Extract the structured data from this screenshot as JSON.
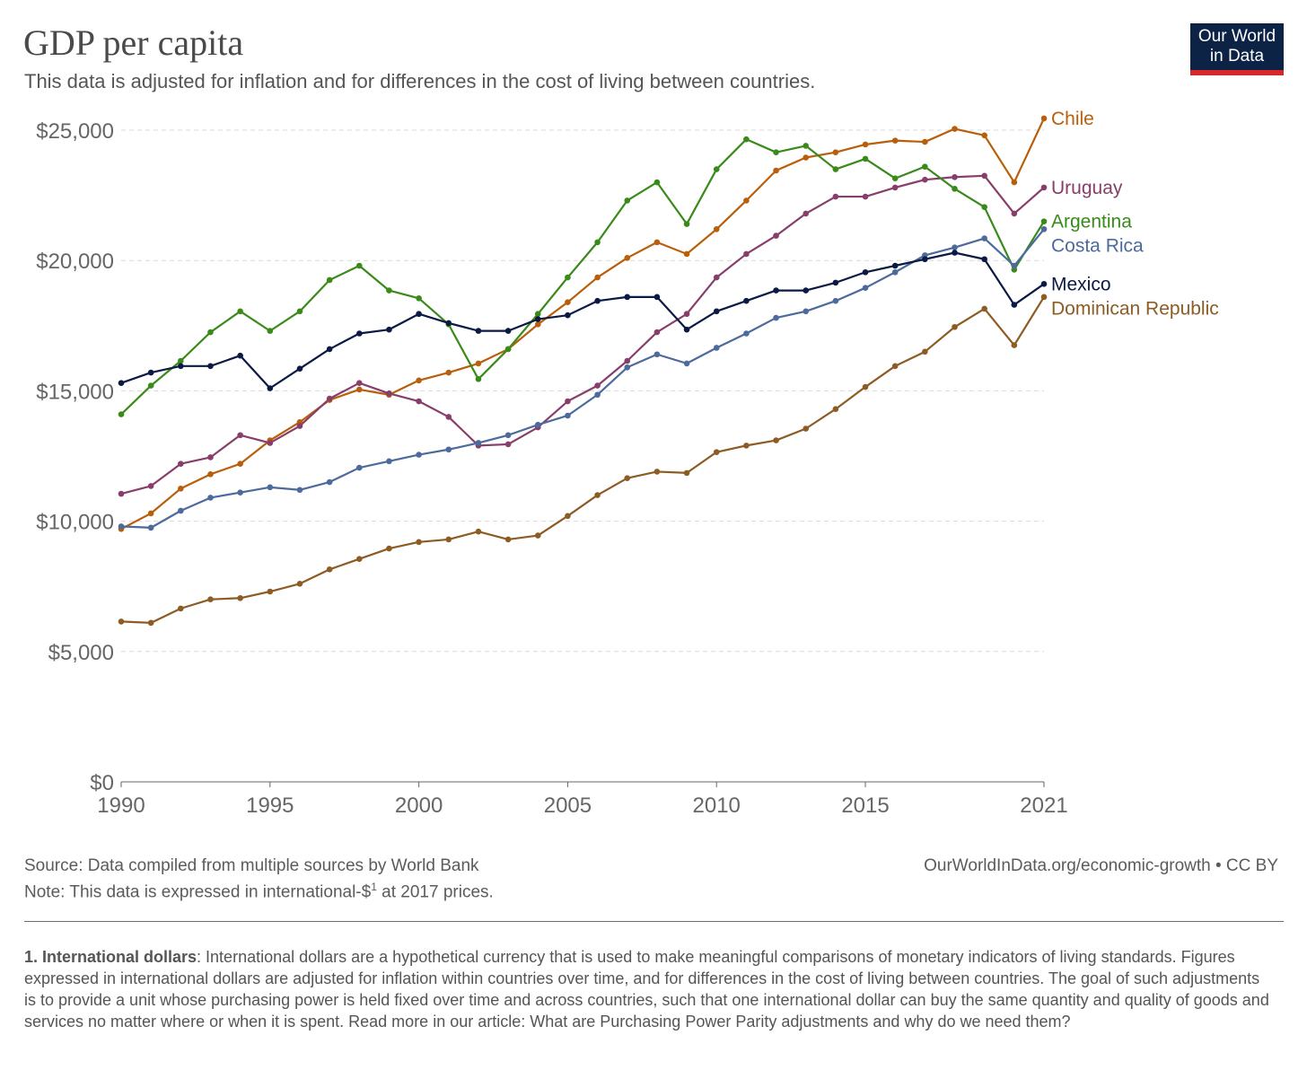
{
  "header": {
    "title": "GDP per capita",
    "subtitle": "This data is adjusted for inflation and for differences in the cost of living between countries.",
    "logo_line1": "Our World",
    "logo_line2": "in Data"
  },
  "footer": {
    "source": "Source: Data compiled from multiple sources by World Bank",
    "note_prefix": "Note: This data is expressed in international-$",
    "note_sup": "1",
    "note_suffix": " at 2017 prices.",
    "url": "OurWorldInData.org/economic-growth • CC BY",
    "footnote_bold": "1. International dollars",
    "footnote_text": ": International dollars are a hypothetical currency that is used to make meaningful comparisons of monetary indicators of living standards. Figures expressed in international dollars are adjusted for inflation within countries over time, and for differences in the cost of living between countries. The goal of such adjustments is to provide a unit whose purchasing power is held fixed over time and across countries, such that one international dollar can buy the same quantity and quality of goods and services no matter where or when it is spent. Read more in our article: What are Purchasing Power Parity adjustments and why do we need them?"
  },
  "chart_data": {
    "type": "line",
    "title": "GDP per capita",
    "xlabel": "",
    "ylabel": "",
    "xlim": [
      1990,
      2021
    ],
    "ylim": [
      0,
      25000
    ],
    "x_ticks": [
      "1990",
      "1995",
      "2000",
      "2005",
      "2010",
      "2015",
      "2021"
    ],
    "y_ticks": [
      "$0",
      "$5,000",
      "$10,000",
      "$15,000",
      "$20,000",
      "$25,000"
    ],
    "grid": true,
    "x": [
      1990,
      1991,
      1992,
      1993,
      1994,
      1995,
      1996,
      1997,
      1998,
      1999,
      2000,
      2001,
      2002,
      2003,
      2004,
      2005,
      2006,
      2007,
      2008,
      2009,
      2010,
      2011,
      2012,
      2013,
      2014,
      2015,
      2016,
      2017,
      2018,
      2019,
      2020,
      2021
    ],
    "series": [
      {
        "name": "Chile",
        "color": "#b95e0b",
        "values": [
          9700,
          10300,
          11250,
          11800,
          12200,
          13100,
          13800,
          14650,
          15050,
          14850,
          15400,
          15700,
          16050,
          16600,
          17550,
          18400,
          19350,
          20100,
          20700,
          20250,
          21200,
          22300,
          23450,
          23950,
          24150,
          24450,
          24600,
          24550,
          25050,
          24800,
          23000,
          25450
        ]
      },
      {
        "name": "Uruguay",
        "color": "#883e6a",
        "values": [
          11050,
          11350,
          12200,
          12450,
          13300,
          13000,
          13650,
          14700,
          15300,
          14900,
          14600,
          14000,
          12900,
          12950,
          13600,
          14600,
          15200,
          16150,
          17250,
          17950,
          19350,
          20250,
          20950,
          21800,
          22450,
          22450,
          22800,
          23100,
          23200,
          23250,
          21800,
          22800
        ]
      },
      {
        "name": "Argentina",
        "color": "#3a8a1a",
        "values": [
          14100,
          15200,
          16150,
          17250,
          18050,
          17300,
          18050,
          19250,
          19800,
          18850,
          18550,
          17550,
          15450,
          16600,
          17950,
          19350,
          20700,
          22300,
          23000,
          21400,
          23500,
          24650,
          24150,
          24400,
          23500,
          23900,
          23150,
          23600,
          22750,
          22050,
          19650,
          21500
        ]
      },
      {
        "name": "Costa Rica",
        "color": "#4c6a9c",
        "values": [
          9800,
          9750,
          10400,
          10900,
          11100,
          11300,
          11200,
          11500,
          12050,
          12300,
          12550,
          12750,
          13000,
          13300,
          13700,
          14050,
          14850,
          15900,
          16400,
          16050,
          16650,
          17200,
          17800,
          18050,
          18450,
          18950,
          19550,
          20200,
          20500,
          20850,
          19800,
          21200
        ]
      },
      {
        "name": "Mexico",
        "color": "#0b1a44",
        "values": [
          15300,
          15700,
          15950,
          15950,
          16350,
          15100,
          15850,
          16600,
          17200,
          17350,
          17950,
          17600,
          17300,
          17300,
          17750,
          17900,
          18450,
          18600,
          18600,
          17350,
          18050,
          18450,
          18850,
          18850,
          19150,
          19550,
          19800,
          20050,
          20300,
          20050,
          18300,
          19100
        ]
      },
      {
        "name": "Dominican Republic",
        "color": "#8d5c24",
        "values": [
          6150,
          6100,
          6650,
          7000,
          7050,
          7300,
          7600,
          8150,
          8550,
          8950,
          9200,
          9300,
          9600,
          9300,
          9450,
          10200,
          11000,
          11650,
          11900,
          11850,
          12650,
          12900,
          13100,
          13550,
          14300,
          15150,
          15950,
          16500,
          17450,
          18150,
          16750,
          18600
        ]
      }
    ]
  }
}
